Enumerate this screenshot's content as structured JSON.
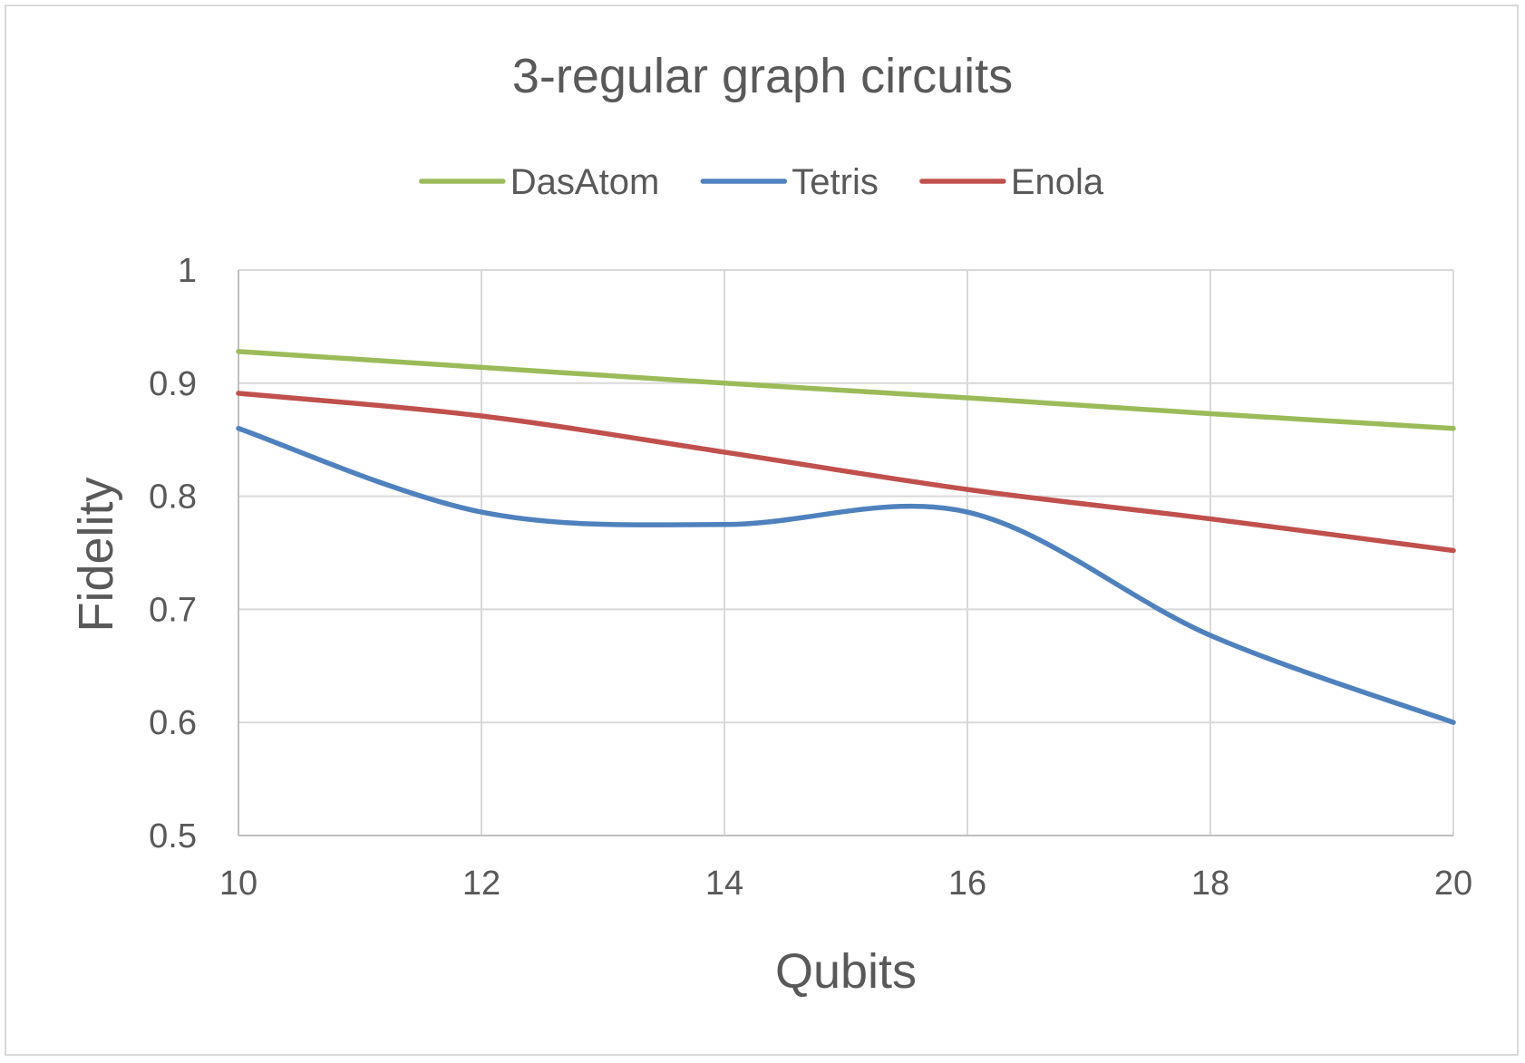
{
  "chart_data": {
    "type": "line",
    "title": "3-regular graph circuits",
    "xlabel": "Qubits",
    "ylabel": "Fidelity",
    "x": [
      10,
      12,
      14,
      16,
      18,
      20
    ],
    "x_ticks": [
      "10",
      "12",
      "14",
      "16",
      "18",
      "20"
    ],
    "y_ticks": [
      "0.5",
      "0.6",
      "0.7",
      "0.8",
      "0.9",
      "1"
    ],
    "xlim": [
      10,
      20
    ],
    "ylim": [
      0.5,
      1.0
    ],
    "grid": true,
    "smooth": true,
    "legend_position": "top",
    "series": [
      {
        "name": "DasAtom",
        "color": "#9bbb59",
        "values": [
          0.928,
          0.914,
          0.9,
          0.887,
          0.873,
          0.86
        ]
      },
      {
        "name": "Tetris",
        "color": "#4f81bd",
        "values": [
          0.86,
          0.786,
          0.775,
          0.786,
          0.677,
          0.6
        ]
      },
      {
        "name": "Enola",
        "color": "#c0504d",
        "values": [
          0.891,
          0.871,
          0.839,
          0.806,
          0.78,
          0.752
        ]
      }
    ]
  }
}
